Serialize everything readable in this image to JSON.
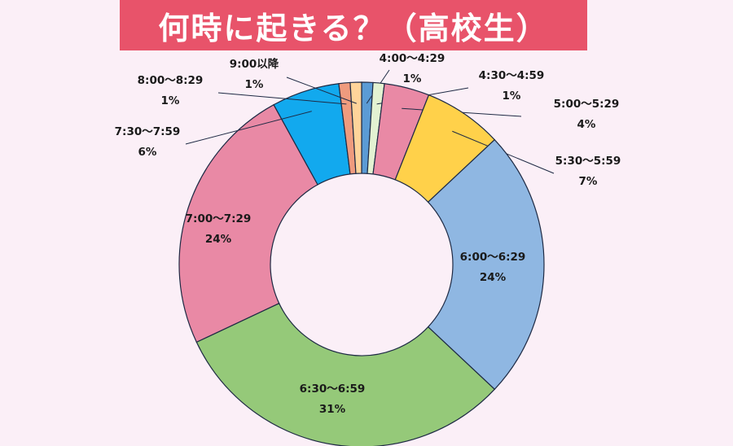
{
  "title": "何時に起きる？（高校生）",
  "chart_data": {
    "type": "pie",
    "title": "何時に起きる？（高校生）",
    "donut": true,
    "slices": [
      {
        "label": "4:00〜4:29",
        "value": 1,
        "value_label": "1%",
        "color": "#5b9bd5"
      },
      {
        "label": "4:30〜4:59",
        "value": 1,
        "value_label": "1%",
        "color": "#e3f2d2"
      },
      {
        "label": "5:00〜5:29",
        "value": 4,
        "value_label": "4%",
        "color": "#e989a5"
      },
      {
        "label": "5:30〜5:59",
        "value": 7,
        "value_label": "7%",
        "color": "#ffd14a"
      },
      {
        "label": "6:00〜6:29",
        "value": 24,
        "value_label": "24%",
        "color": "#8fb7e2"
      },
      {
        "label": "6:30〜6:59",
        "value": 31,
        "value_label": "31%",
        "color": "#95c979"
      },
      {
        "label": "7:00〜7:29",
        "value": 24,
        "value_label": "24%",
        "color": "#e989a5"
      },
      {
        "label": "7:30〜7:59",
        "value": 6,
        "value_label": "6%",
        "color": "#12a9ee"
      },
      {
        "label": "8:00〜8:29",
        "value": 1,
        "value_label": "1%",
        "color": "#ef9b7e"
      },
      {
        "label": "9:00以降",
        "value": 1,
        "value_label": "1%",
        "color": "#ffd49a"
      }
    ]
  }
}
